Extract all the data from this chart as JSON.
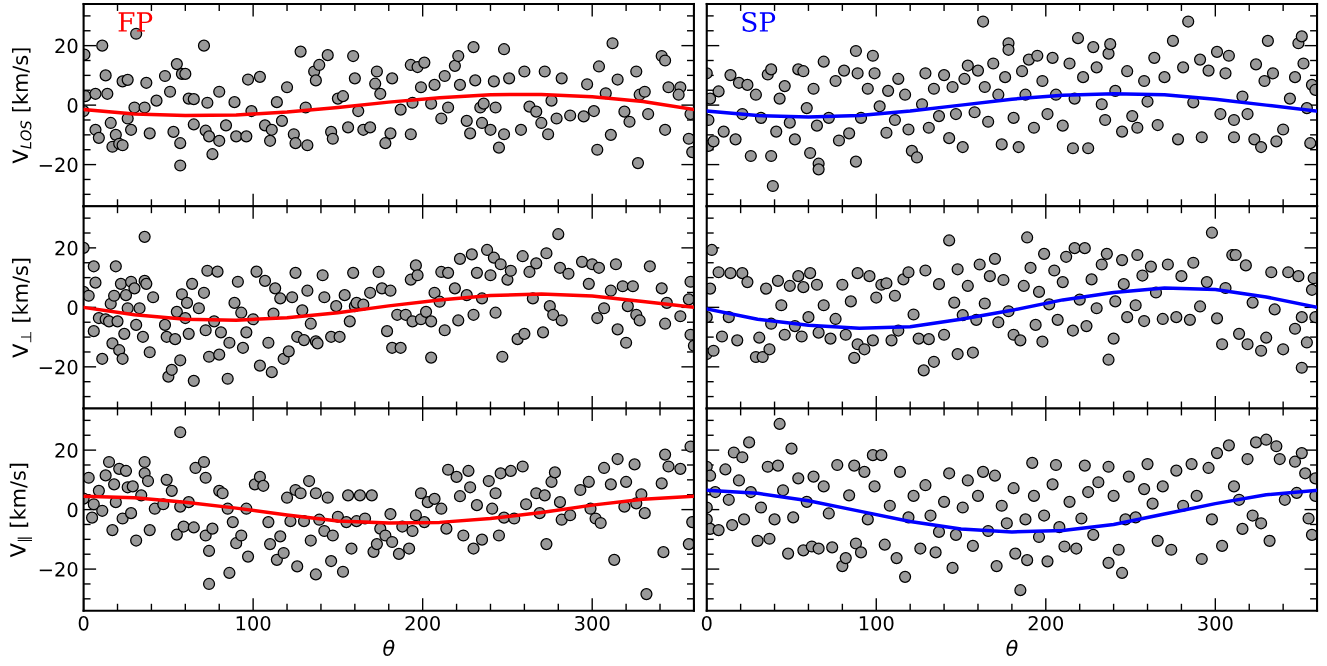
{
  "chart_data": [
    {
      "type": "scatter",
      "ylabel": "V$_{LOS}$ [km/s]",
      "annotations": [
        "FP"
      ],
      "xlim": [
        0,
        360
      ],
      "ylim": [
        -34,
        34
      ],
      "xticks": [
        0,
        100,
        200,
        300
      ],
      "yticks": [
        -20,
        0,
        20
      ],
      "tick_labels": "y",
      "marker": "circle",
      "series": [
        {
          "color": "#999999",
          "x": [
            0.5,
            1,
            0,
            7,
            7,
            9,
            11,
            13,
            14,
            16,
            17,
            19,
            21,
            23,
            23,
            26,
            26,
            28,
            31,
            30,
            36,
            37,
            39,
            43,
            48,
            51,
            53,
            55,
            57,
            57,
            58,
            60,
            62,
            65,
            65,
            71,
            72,
            73,
            74,
            76,
            80,
            80,
            84,
            89,
            90,
            96,
            97,
            99,
            104,
            107,
            110,
            111,
            114,
            117,
            120,
            124,
            125,
            128,
            131,
            132,
            136,
            137,
            139,
            144,
            146,
            147,
            150,
            153,
            156,
            159,
            160,
            162,
            165,
            169,
            172,
            173,
            175,
            178,
            181,
            182,
            187,
            193,
            193,
            194,
            197,
            199,
            201,
            205,
            207,
            211,
            213,
            215,
            219,
            221,
            222,
            226,
            228,
            230,
            231,
            234,
            235,
            236,
            240,
            242,
            243,
            245,
            248,
            248,
            251,
            258,
            260,
            263,
            267,
            270,
            272,
            274,
            276,
            279,
            282,
            287,
            295,
            297,
            301,
            303,
            304,
            308,
            311,
            312,
            315,
            319,
            322,
            326,
            327,
            328,
            331,
            333,
            341,
            343,
            343,
            345,
            352,
            351,
            357,
            358,
            359
          ],
          "values": [
            17,
            3,
            -2,
            3.8,
            -8.3,
            -11,
            20,
            10,
            3.8,
            -6,
            -14,
            -10,
            -13,
            -13.5,
            8,
            8.5,
            -4.5,
            -8.3,
            24,
            -0.8,
            -0.8,
            7.5,
            -9.5,
            1.5,
            9.8,
            4.5,
            -9,
            13.8,
            -12.8,
            -20.3,
            10.5,
            10.5,
            2.2,
            2,
            -6.5,
            20,
            -8.6,
            0.8,
            -10.5,
            -16.5,
            4.5,
            -12,
            -6.8,
            1,
            -10.5,
            -10.5,
            8.6,
            -2,
            9.5,
            -6.8,
            -12,
            -8.3,
            1,
            -5.3,
            6,
            -9.8,
            -12.8,
            18,
            -0.8,
            -13.5,
            11.3,
            8.3,
            13.5,
            16.8,
            -9,
            -11.3,
            2.2,
            3,
            -7.5,
            16.5,
            9,
            -2,
            -8.3,
            -7.5,
            7.2,
            11.3,
            3.8,
            -12.8,
            -9.5,
            9,
            -1.5,
            13.5,
            -9.8,
            0.8,
            12.8,
            6,
            14.3,
            0.5,
            6.8,
            -4.5,
            9.8,
            -0.8,
            13.2,
            16.5,
            6.8,
            -5.3,
            -9.5,
            19.5,
            8.3,
            -0.8,
            -6,
            0.5,
            -8.3,
            8,
            -0.8,
            -14.3,
            18.8,
            -9.8,
            9,
            -8.3,
            11.3,
            -0.5,
            -2.2,
            -6,
            11.3,
            -9.8,
            1.5,
            -4.5,
            9,
            -3.5,
            -3.8,
            7,
            -2,
            -15,
            13,
            4,
            -10,
            20.8,
            8.6,
            -2.2,
            -5.6,
            11.3,
            -19.5,
            3.5,
            4.5,
            -3,
            16.5,
            15,
            -8.3,
            6,
            6,
            3.5,
            -11.3,
            -3,
            -15.8
          ]
        },
        {
          "type": "line",
          "color": "#ff0000",
          "x": [
            0,
            30,
            60,
            90,
            120,
            150,
            180,
            210,
            240,
            270,
            300,
            330,
            360
          ],
          "marker": "none",
          "values": [
            -1.5,
            -3,
            -3.5,
            -3.3,
            -2.3,
            -0.8,
            1,
            2.5,
            3.5,
            3.6,
            2.8,
            1.2,
            -1.5
          ]
        }
      ]
    },
    {
      "type": "scatter",
      "annotations": [
        "SP"
      ],
      "xlim": [
        0,
        360
      ],
      "ylim": [
        -34,
        34
      ],
      "xticks": [
        0,
        100,
        200,
        300
      ],
      "yticks": [
        -20,
        0,
        20
      ],
      "tick_labels": false,
      "marker": "circle",
      "series": [
        {
          "color": "#999999",
          "x": [
            0,
            2,
            1,
            1,
            4,
            7,
            10,
            14,
            17,
            19,
            21,
            24,
            26,
            29,
            32,
            36,
            38,
            38,
            39,
            41,
            43,
            46,
            49,
            52,
            54,
            57,
            59,
            61,
            63,
            65,
            66,
            66,
            69,
            72,
            76,
            78,
            81,
            84,
            88,
            88,
            89,
            91,
            95,
            98,
            99,
            102,
            106,
            107,
            111,
            113,
            117,
            119,
            121,
            124,
            127,
            129,
            131,
            134,
            137,
            140,
            143,
            145,
            147,
            151,
            152,
            154,
            158,
            160,
            163,
            164,
            166,
            169,
            172,
            174,
            176,
            178,
            178,
            181,
            184,
            186,
            188,
            190,
            193,
            195,
            198,
            201,
            204,
            206,
            210,
            214,
            216,
            217,
            219,
            222,
            225,
            228,
            230,
            233,
            235,
            237,
            238,
            241,
            245,
            248,
            251,
            254,
            258,
            260,
            264,
            266,
            270,
            275,
            278,
            281,
            284,
            287,
            291,
            292,
            296,
            301,
            303,
            306,
            308,
            311,
            311,
            316,
            319,
            323,
            324,
            327,
            329,
            331,
            334,
            336,
            340,
            344,
            347,
            349,
            351,
            352,
            354,
            356,
            357,
            359
          ],
          "values": [
            10.7,
            2.2,
            -5,
            -13.7,
            -12.2,
            4.6,
            -8.9,
            10.1,
            -11.5,
            7.5,
            -3,
            6.8,
            -17.1,
            3.5,
            -4.3,
            10.3,
            12,
            -17.1,
            -27.2,
            -8.9,
            2.2,
            6.4,
            -5.9,
            -11.5,
            12,
            11.4,
            -1,
            -16.1,
            5.5,
            -6.9,
            -19.7,
            -21.6,
            14.6,
            -4.3,
            8.1,
            -11.9,
            11.6,
            -9.5,
            18.2,
            -19,
            10.7,
            -4.3,
            5.5,
            16.6,
            10.7,
            -0.4,
            -9.3,
            4.8,
            -5,
            8.8,
            3.5,
            -8.2,
            -15.4,
            -17.6,
            0.3,
            10.7,
            -7.6,
            5.5,
            -3.7,
            10.1,
            -11.1,
            6.1,
            -3,
            -14.1,
            8.8,
            13.3,
            -2.4,
            11.6,
            28.1,
            6.1,
            -5.6,
            14,
            3.5,
            -13.2,
            9.4,
            20.8,
            18.6,
            -4.3,
            -14.1,
            11.4,
            3.5,
            15.3,
            -7.6,
            16.6,
            8.1,
            -3,
            15.9,
            3.5,
            -6.9,
            14,
            -14.5,
            2.2,
            22.5,
            9.4,
            -14.5,
            19.5,
            12.7,
            0.3,
            -5,
            17.3,
            20.5,
            4.8,
            -8.9,
            11.4,
            -3.7,
            -7.6,
            8.1,
            1.2,
            15.9,
            -6.7,
            9.4,
            21.6,
            -11.5,
            12.7,
            28.1,
            0.9,
            15.3,
            -10.8,
            11.6,
            17.9,
            -3,
            10.7,
            16.6,
            -10.8,
            -5,
            2.9,
            -3,
            -11.5,
            13.7,
            -14.1,
            8.1,
            21.6,
            10.7,
            -12.2,
            -8.2,
            2.2,
            9.4,
            20.8,
            23.1,
            14,
            -1,
            -12.8,
            6.8,
            5.1
          ]
        },
        {
          "type": "line",
          "color": "#0000ff",
          "x": [
            0,
            30,
            60,
            90,
            120,
            150,
            180,
            210,
            240,
            270,
            300,
            330,
            360
          ],
          "marker": "none",
          "values": [
            -2,
            -3.5,
            -4,
            -3.5,
            -2,
            0,
            2,
            3.3,
            3.8,
            3.5,
            2,
            0,
            -2
          ]
        }
      ]
    },
    {
      "type": "scatter",
      "ylabel": "V$_{⊥}$ [km/s]",
      "xlim": [
        0,
        360
      ],
      "ylim": [
        -34,
        34
      ],
      "xticks": [
        0,
        100,
        200,
        300
      ],
      "yticks": [
        -20,
        0,
        20
      ],
      "tick_labels": "y",
      "marker": "circle",
      "series": [
        {
          "color": "#999999",
          "x": [
            0,
            0,
            3,
            6,
            7,
            6,
            9,
            11,
            13,
            15,
            16,
            17,
            18,
            19,
            20,
            21,
            22,
            23,
            24,
            25,
            26,
            28,
            30,
            31,
            33,
            35,
            36,
            36,
            37,
            39,
            41,
            48,
            49,
            50,
            52,
            54,
            55,
            57,
            58,
            60,
            61,
            62,
            64,
            65,
            68,
            71,
            72,
            73,
            74,
            77,
            79,
            80,
            81,
            85,
            86,
            89,
            91,
            93,
            94,
            96,
            100,
            102,
            104,
            107,
            109,
            111,
            112,
            113,
            116,
            118,
            121,
            123,
            125,
            126,
            129,
            130,
            132,
            134,
            137,
            138,
            141,
            142,
            146,
            149,
            151,
            154,
            157,
            159,
            160,
            161,
            165,
            169,
            174,
            176,
            179,
            181,
            182,
            185,
            187,
            190,
            193,
            194,
            196,
            197,
            199,
            202,
            205,
            205,
            207,
            210,
            211,
            213,
            215,
            219,
            221,
            222,
            226,
            229,
            230,
            232,
            235,
            238,
            240,
            242,
            243,
            246,
            247,
            250,
            252,
            256,
            259,
            260,
            263,
            265,
            267,
            271,
            273,
            275,
            277,
            280,
            281,
            282,
            286,
            294,
            298,
            300,
            303,
            304,
            307,
            311,
            314,
            315,
            318,
            320,
            321,
            324,
            326,
            328,
            334,
            341,
            343,
            344,
            352,
            357,
            358,
            358,
            360
          ],
          "values": [
            20,
            5.2,
            3.9,
            13.8,
            8.3,
            -8,
            -3.6,
            -17.3,
            -4,
            -4.7,
            1.2,
            -12.1,
            3.9,
            13.8,
            -4.7,
            -14.4,
            7.9,
            -17.3,
            -8.9,
            4.1,
            -0.3,
            8.6,
            6.4,
            -5.9,
            -0.3,
            -9.9,
            23.7,
            8.9,
            7.9,
            -15.1,
            3.4,
            -5.9,
            -9.9,
            -23.3,
            -21,
            -10.7,
            -1.5,
            -17.8,
            4.4,
            -3.6,
            1.5,
            -8.9,
            7.9,
            -24.7,
            -0.3,
            4.9,
            -7.7,
            12.3,
            -16.6,
            -4.7,
            12,
            -15.9,
            -8.4,
            -24,
            -11.9,
            1.5,
            8.6,
            -1.8,
            -13.6,
            -8.4,
            -4,
            12,
            -19.6,
            8.9,
            -11.9,
            -21.8,
            -2.1,
            6.4,
            3,
            -17.3,
            -14.8,
            3.4,
            11.6,
            -9.9,
            -1,
            -11,
            5.6,
            -5.5,
            -11.4,
            -12.1,
            10.8,
            3.4,
            -9.9,
            0.4,
            -9.9,
            4.1,
            -4.7,
            11.6,
            0.4,
            1.5,
            0.9,
            4.9,
            11.9,
            6.4,
            -8,
            5.6,
            -13.6,
            -2.5,
            -13.6,
            -2.5,
            9.3,
            -4.7,
            14.1,
            10.8,
            -4,
            -1.5,
            -4.7,
            -16.9,
            4.9,
            1.9,
            11.9,
            -7.7,
            11.6,
            6.4,
            -4.4,
            16.3,
            4.1,
            17.8,
            -2.5,
            11.6,
            3,
            19.3,
            10.8,
            16.7,
            -1.8,
            14.5,
            -16.6,
            9.3,
            12.3,
            -10.7,
            17.2,
            -8.9,
            11.9,
            3,
            14.8,
            -8.4,
            18.2,
            0.4,
            -2.5,
            24.6,
            13.3,
            -4.4,
            11.3,
            15.3,
            7.9,
            14.5,
            -3.6,
            13.3,
            -0.3,
            5.6,
            14.5,
            -7.4,
            7.1,
            -11.9,
            0.4,
            7.1,
            -2.5,
            -4.4,
            13.8,
            6.4,
            -5.5,
            1.5,
            -3,
            2.7,
            8.6,
            -9.2,
            -12.9
          ]
        },
        {
          "type": "line",
          "color": "#ff0000",
          "x": [
            0,
            30,
            60,
            90,
            120,
            150,
            180,
            210,
            240,
            270,
            300,
            330,
            360
          ],
          "marker": "none",
          "values": [
            0,
            -2.5,
            -4,
            -4.3,
            -3.5,
            -1.8,
            0.5,
            2.5,
            4,
            4.5,
            3.8,
            2,
            0
          ]
        }
      ]
    },
    {
      "type": "scatter",
      "xlim": [
        0,
        360
      ],
      "ylim": [
        -34,
        34
      ],
      "xticks": [
        0,
        100,
        200,
        300
      ],
      "yticks": [
        -20,
        0,
        20
      ],
      "tick_labels": false,
      "marker": "circle",
      "series": [
        {
          "color": "#999999",
          "x": [
            3,
            0,
            0,
            2,
            4,
            7,
            9,
            13,
            14,
            18,
            21,
            24,
            29,
            31,
            33,
            35,
            37,
            38,
            42,
            44,
            46,
            49,
            52,
            54,
            56,
            57,
            60,
            61,
            65,
            66,
            69,
            73,
            76,
            80,
            82,
            85,
            87,
            89,
            89,
            93,
            96,
            98,
            100,
            103,
            106,
            109,
            111,
            113,
            116,
            119,
            122,
            125,
            128,
            129,
            131,
            134,
            137,
            140,
            143,
            146,
            148,
            148,
            151,
            154,
            157,
            159,
            161,
            164,
            167,
            170,
            172,
            175,
            178,
            181,
            185,
            187,
            189,
            191,
            194,
            196,
            198,
            199,
            202,
            205,
            207,
            210,
            212,
            216,
            217,
            220,
            223,
            224,
            227,
            230,
            233,
            236,
            237,
            240,
            241,
            245,
            246,
            248,
            253,
            254,
            257,
            258,
            262,
            265,
            269,
            272,
            277,
            280,
            285,
            287,
            291,
            295,
            298,
            301,
            304,
            306,
            310,
            312,
            314,
            318,
            319,
            322,
            327,
            330,
            333,
            335,
            340,
            343,
            347,
            349,
            351,
            351,
            354,
            357,
            358,
            359
          ],
          "values": [
            19.3,
            -15.7,
            -3.3,
            6.3,
            -14.6,
            11.8,
            -9.8,
            -3.3,
            11.5,
            -11.1,
            11.5,
            8.5,
            -16.7,
            -10.2,
            -16.7,
            6.3,
            -14.1,
            -5.5,
            8.9,
            0.7,
            -9.2,
            7.2,
            -6.3,
            10.5,
            -9.8,
            6.8,
            -3.3,
            11.5,
            7.6,
            -8.5,
            0.7,
            -10.5,
            -3.9,
            7.6,
            -9.2,
            2,
            -17,
            11.5,
            -12.4,
            -14.1,
            10.5,
            -11.1,
            3.3,
            7.6,
            8.1,
            -11.1,
            3.9,
            -7.8,
            9.4,
            11.8,
            -2.4,
            -10.5,
            -21.2,
            12.4,
            -10.7,
            -18.3,
            7.8,
            -9.2,
            22.5,
            1.6,
            12.8,
            -15.7,
            -2.6,
            7.2,
            -15.2,
            -4.2,
            14.4,
            1.3,
            10.5,
            16.3,
            -5,
            9.2,
            -1.3,
            -9.2,
            -11.1,
            7.2,
            23.5,
            13.3,
            -5.9,
            5.2,
            -11.5,
            18,
            1,
            12.4,
            -4.2,
            8.5,
            17,
            -7.8,
            19.9,
            2.6,
            19.9,
            -6.3,
            9.4,
            -0.3,
            14.4,
            18,
            -17.6,
            -10.5,
            2,
            15.9,
            7.8,
            -3.3,
            0.7,
            17.6,
            10.7,
            -4.6,
            13.7,
            5,
            -3.9,
            14.4,
            -3.3,
            10.5,
            -4.2,
            15,
            0.3,
            8.5,
            25.1,
            -3.7,
            -12.4,
            6.5,
            17.6,
            17.6,
            -8.9,
            14.1,
            -12.4,
            1.6,
            -14.6,
            -10.2,
            11.8,
            -0.7,
            -14.1,
            11.8,
            -7.2,
            10.5,
            -3.3,
            -20.3,
            -11.8,
            5.9,
            9.8,
            -3.3
          ]
        },
        {
          "type": "line",
          "color": "#0000ff",
          "x": [
            0,
            30,
            60,
            90,
            120,
            150,
            180,
            210,
            240,
            270,
            300,
            330,
            360
          ],
          "marker": "none",
          "values": [
            -0.5,
            -4,
            -6,
            -7,
            -6.5,
            -4,
            -1,
            2.5,
            5,
            6.5,
            6,
            3.5,
            0
          ]
        }
      ]
    },
    {
      "type": "scatter",
      "ylabel": "V$_{∥}$ [km/s]",
      "xlabel": "θ",
      "xlim": [
        0,
        360
      ],
      "ylim": [
        -34,
        34
      ],
      "xticks": [
        0,
        100,
        200,
        300
      ],
      "yticks": [
        -20,
        0,
        20
      ],
      "marker": "circle",
      "series": [
        {
          "color": "#999999",
          "x": [
            0,
            3,
            5,
            6,
            9,
            11,
            13,
            15,
            17,
            18,
            19,
            21,
            23,
            25,
            26,
            28,
            29,
            31,
            34,
            36,
            36,
            38,
            39,
            42,
            47,
            49,
            52,
            55,
            57,
            57,
            59,
            62,
            65,
            66,
            71,
            72,
            72,
            74,
            74,
            76,
            80,
            82,
            85,
            86,
            88,
            90,
            93,
            96,
            97,
            101,
            104,
            106,
            109,
            110,
            114,
            116,
            118,
            120,
            122,
            125,
            126,
            128,
            130,
            133,
            134,
            137,
            137,
            139,
            142,
            144,
            146,
            147,
            150,
            153,
            155,
            156,
            158,
            161,
            163,
            166,
            170,
            171,
            173,
            175,
            178,
            181,
            182,
            186,
            188,
            192,
            194,
            196,
            199,
            201,
            203,
            207,
            211,
            214,
            215,
            220,
            222,
            224,
            227,
            228,
            230,
            232,
            235,
            239,
            241,
            243,
            245,
            246,
            248,
            252,
            254,
            259,
            261,
            267,
            269,
            272,
            273,
            276,
            278,
            281,
            282,
            287,
            293,
            298,
            299,
            302,
            305,
            307,
            311,
            313,
            315,
            319,
            320,
            325,
            326,
            329,
            331,
            332,
            341,
            342,
            343,
            345,
            352,
            357,
            358,
            359
          ],
          "values": [
            3.7,
            10.7,
            -2.7,
            1.8,
            6.3,
            -0.4,
            11.5,
            16,
            -6.9,
            8.5,
            2.5,
            13.7,
            -3,
            13,
            7.5,
            -1.2,
            7.8,
            -10.4,
            4.8,
            16,
            12.2,
            9.6,
            -6.9,
            0.3,
            1.8,
            10,
            6.3,
            -8.4,
            26,
            1,
            -5.7,
            2.5,
            -6,
            14,
            16,
            10.7,
            -8.7,
            -25,
            -13.9,
            -6.4,
            6.3,
            5.5,
            0.3,
            -21.3,
            -4.2,
            -11.3,
            -8.7,
            0.3,
            -15.8,
            8.5,
            11,
            8,
            -4.2,
            -11.6,
            -16.9,
            -9,
            -14.6,
            4,
            -3.9,
            6.6,
            -19.1,
            5.5,
            -3.9,
            9.6,
            -10.4,
            -21.8,
            5.5,
            -3.4,
            -7.2,
            4,
            -17.3,
            -8.7,
            -2.4,
            -20.9,
            -4.2,
            4.8,
            -13.1,
            -3.9,
            4.8,
            -3,
            4.8,
            -14.2,
            -11.6,
            -6.4,
            -8.7,
            -1.5,
            -10.9,
            -14.9,
            -5.7,
            -13.1,
            -7.2,
            -1.9,
            5.5,
            -4.2,
            2.5,
            3.6,
            0.3,
            -6.4,
            13.4,
            11,
            4.5,
            -8.7,
            13,
            7.5,
            -13.1,
            1.5,
            -10.1,
            9.6,
            0.3,
            5.5,
            -8.7,
            12.2,
            -2.7,
            13,
            -3,
            14.5,
            1.8,
            5.5,
            -1.2,
            4.8,
            -11.6,
            9.3,
            12.5,
            2.5,
            -3.4,
            -1.9,
            6.6,
            9.3,
            0.3,
            -3,
            -4.5,
            14,
            8.5,
            -16.9,
            17,
            1,
            9.3,
            15.2,
            2.1,
            5.1,
            -1.2,
            -28.4,
            8.8,
            -14.3,
            18.5,
            14.5,
            13.7,
            -11.6,
            21.2,
            -4.2
          ]
        },
        {
          "type": "line",
          "color": "#ff0000",
          "x": [
            0,
            30,
            60,
            90,
            120,
            150,
            180,
            210,
            240,
            270,
            300,
            330,
            360
          ],
          "marker": "none",
          "values": [
            4.5,
            4,
            2.5,
            0.5,
            -1.8,
            -3.8,
            -4.5,
            -4.3,
            -3,
            -1,
            1.5,
            3.5,
            4.5
          ]
        }
      ]
    },
    {
      "type": "scatter",
      "xlabel": "θ",
      "xlim": [
        0,
        360
      ],
      "ylim": [
        -34,
        34
      ],
      "xticks": [
        0,
        100,
        200,
        300
      ],
      "yticks": [
        -20,
        0,
        20
      ],
      "tick_labels": "x",
      "marker": "circle",
      "series": [
        {
          "color": "#999999",
          "x": [
            0,
            0,
            0,
            2,
            2,
            5,
            7,
            11,
            13,
            15,
            16,
            19,
            21,
            22,
            25,
            26,
            30,
            32,
            36,
            37,
            40,
            42,
            43,
            45,
            48,
            50,
            51,
            54,
            57,
            59,
            62,
            63,
            66,
            69,
            72,
            74,
            77,
            80,
            82,
            84,
            87,
            88,
            91,
            93,
            95,
            98,
            99,
            103,
            105,
            108,
            112,
            114,
            117,
            119,
            122,
            126,
            129,
            132,
            135,
            137,
            140,
            143,
            145,
            147,
            151,
            154,
            157,
            160,
            163,
            166,
            170,
            171,
            174,
            177,
            181,
            182,
            185,
            188,
            189,
            192,
            193,
            196,
            199,
            201,
            204,
            206,
            208,
            211,
            214,
            218,
            221,
            223,
            225,
            228,
            231,
            237,
            237,
            240,
            243,
            245,
            247,
            249,
            253,
            258,
            260,
            263,
            266,
            269,
            274,
            277,
            281,
            286,
            289,
            292,
            296,
            298,
            301,
            304,
            308,
            311,
            314,
            316,
            319,
            322,
            324,
            327,
            330,
            332,
            336,
            338,
            341,
            347,
            348,
            351,
            353,
            355,
            357,
            359,
            359
          ],
          "values": [
            14.4,
            0.7,
            -3.3,
            11.4,
            -6.5,
            5.9,
            -6.9,
            13.5,
            3.3,
            -5.2,
            19.2,
            9.8,
            17.6,
            -3.3,
            22.6,
            5.9,
            -10.5,
            0.7,
            14.4,
            -9.8,
            -3.3,
            14.8,
            28.8,
            6.5,
            -14.8,
            20.5,
            -2.6,
            10.5,
            -13.7,
            2.6,
            -12.4,
            11.1,
            -13.1,
            7.8,
            -1.3,
            -12.7,
            15,
            -19,
            -16.3,
            4.8,
            14.8,
            -11.4,
            -14.4,
            12.7,
            -3.3,
            18.3,
            7.8,
            18.3,
            -11.8,
            1.3,
            -16.3,
            12.7,
            -22.6,
            -2.6,
            4.6,
            -13.1,
            8.2,
            -2,
            -14.4,
            -7.5,
            2.6,
            12.2,
            -19.6,
            -8.5,
            0.7,
            9.8,
            -12.2,
            4.6,
            12.7,
            -7.2,
            11.4,
            -19,
            1.3,
            -4.6,
            7.2,
            -14.8,
            -27.1,
            -3.3,
            -17,
            15.7,
            4.6,
            -9.2,
            -2,
            -17.4,
            8.5,
            15,
            -5.9,
            -12.4,
            2.6,
            -13.1,
            -3,
            14.8,
            5.9,
            -8.5,
            9.2,
            -17.9,
            14.4,
            4.6,
            -13.5,
            -21.3,
            -3.3,
            11.1,
            -2.6,
            6.9,
            15.3,
            2,
            -10.5,
            7.8,
            -13.5,
            13.1,
            1.3,
            15.3,
            4.6,
            -16.6,
            14,
            -3.3,
            19,
            -12.2,
            21.6,
            7.8,
            3.3,
            -6.5,
            17,
            -2,
            22.6,
            -4.6,
            23.5,
            -10.5,
            21.3,
            17,
            3.3,
            16.1,
            5.6,
            19,
            12.2,
            -3,
            -8.5,
            10.5,
            4.6
          ]
        },
        {
          "type": "line",
          "color": "#0000ff",
          "x": [
            0,
            30,
            60,
            90,
            120,
            150,
            180,
            210,
            240,
            270,
            300,
            330,
            360
          ],
          "marker": "none",
          "values": [
            6.5,
            5.5,
            3,
            -0.5,
            -4,
            -6.5,
            -7.5,
            -7,
            -5,
            -1.5,
            2,
            5,
            6.5
          ]
        }
      ]
    }
  ]
}
